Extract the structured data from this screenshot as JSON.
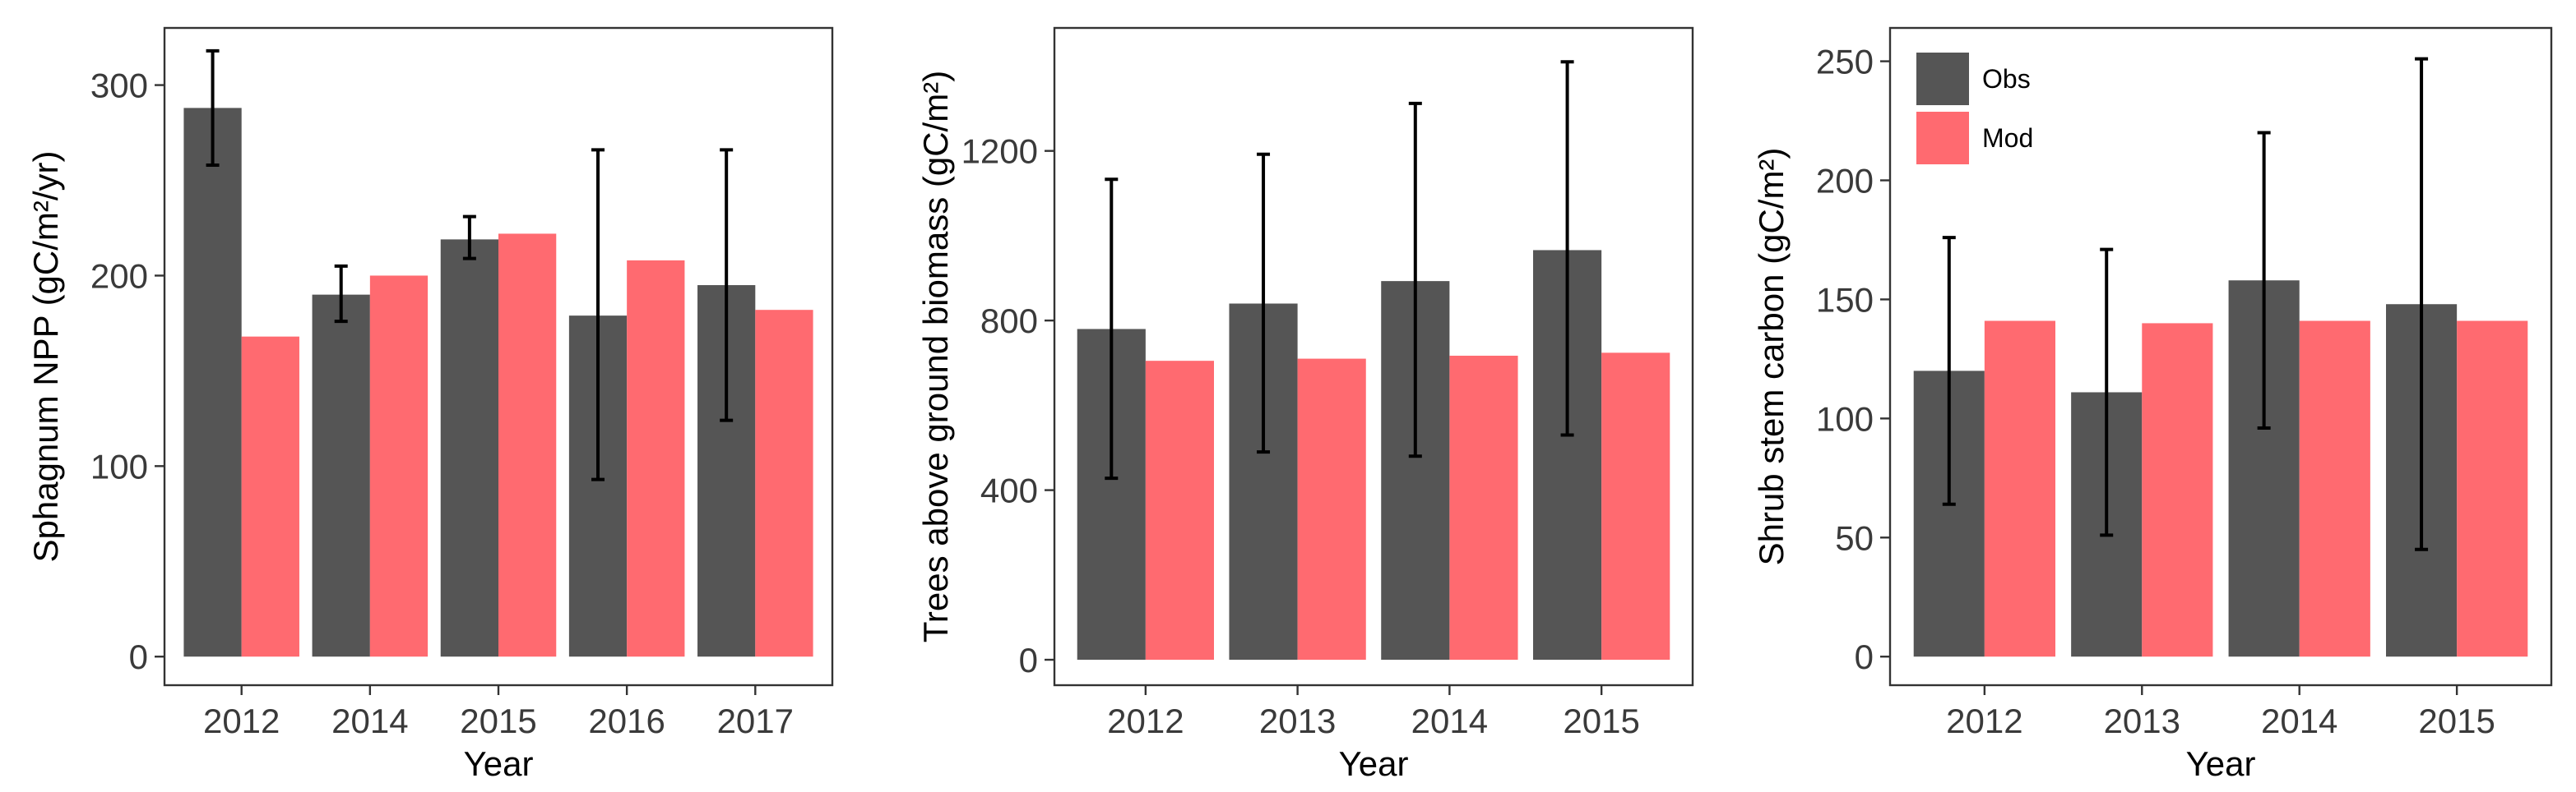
{
  "chart_data": [
    {
      "type": "bar",
      "xlabel": "Year",
      "ylabel": "Sphagnum NPP",
      "ylabel_unit": "(gC/m²/yr)",
      "categories": [
        "2012",
        "2014",
        "2015",
        "2016",
        "2017"
      ],
      "ylim": [
        -15,
        330
      ],
      "yticks": [
        0,
        100,
        200,
        300
      ],
      "series": [
        {
          "name": "Obs",
          "color": "#555555",
          "values": [
            288,
            190,
            219,
            179,
            195
          ],
          "err_low": [
            258,
            176,
            209,
            93,
            124
          ],
          "err_high": [
            318,
            205,
            231,
            266,
            266
          ]
        },
        {
          "name": "Mod",
          "color": "#ff6a70",
          "values": [
            168,
            200,
            222,
            208,
            182
          ]
        }
      ],
      "legend": false
    },
    {
      "type": "bar",
      "xlabel": "Year",
      "ylabel": "Trees above ground biomass",
      "ylabel_unit": "(gC/m²)",
      "categories": [
        "2012",
        "2013",
        "2014",
        "2015"
      ],
      "ylim": [
        -60,
        1490
      ],
      "yticks": [
        0,
        400,
        800,
        1200
      ],
      "series": [
        {
          "name": "Obs",
          "color": "#555555",
          "values": [
            780,
            840,
            893,
            966
          ],
          "err_low": [
            428,
            490,
            480,
            530
          ],
          "err_high": [
            1133,
            1192,
            1312,
            1410
          ]
        },
        {
          "name": "Mod",
          "color": "#ff6a70",
          "values": [
            705,
            710,
            717,
            724
          ]
        }
      ],
      "legend": false
    },
    {
      "type": "bar",
      "xlabel": "Year",
      "ylabel": "Shrub stem carbon",
      "ylabel_unit": "(gC/m²)",
      "categories": [
        "2012",
        "2013",
        "2014",
        "2015"
      ],
      "ylim": [
        -12,
        264
      ],
      "yticks": [
        0,
        50,
        100,
        150,
        200,
        250
      ],
      "series": [
        {
          "name": "Obs",
          "color": "#555555",
          "values": [
            120,
            111,
            158,
            148
          ],
          "err_low": [
            64,
            51,
            96,
            45
          ],
          "err_high": [
            176,
            171,
            220,
            251
          ]
        },
        {
          "name": "Mod",
          "color": "#ff6a70",
          "values": [
            141,
            140,
            141,
            141
          ]
        }
      ],
      "legend": true,
      "legend_position": "top-left"
    }
  ]
}
